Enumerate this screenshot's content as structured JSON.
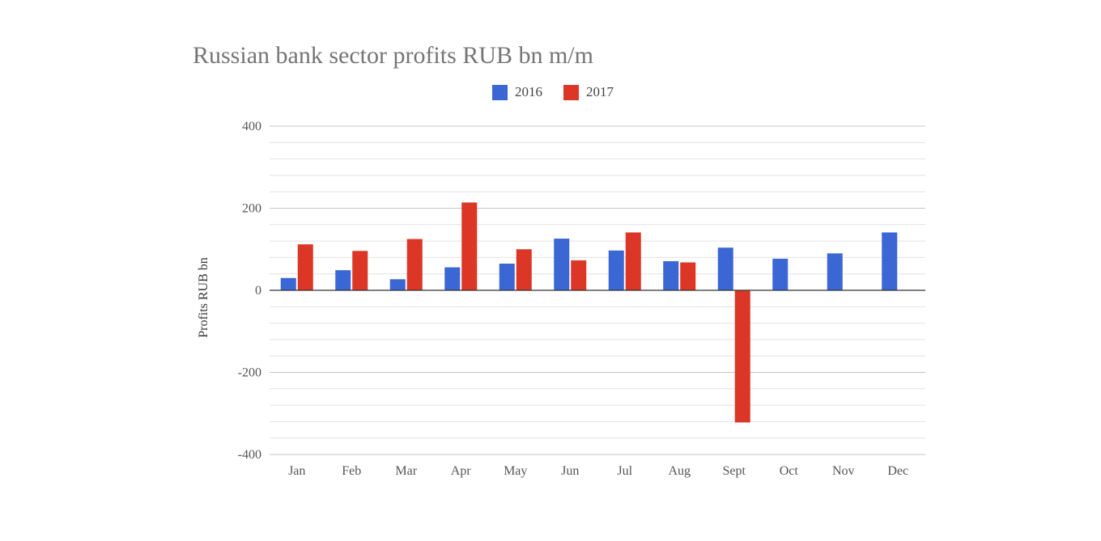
{
  "chart_data": {
    "type": "bar",
    "title": "Russian bank sector profits RUB bn m/m",
    "xlabel": "",
    "ylabel": "Profits RUB bn",
    "categories": [
      "Jan",
      "Feb",
      "Mar",
      "Apr",
      "May",
      "Jun",
      "Jul",
      "Aug",
      "Sept",
      "Oct",
      "Nov",
      "Dec"
    ],
    "series": [
      {
        "name": "2016",
        "color": "#3b67d4",
        "values": [
          30,
          49,
          27,
          56,
          65,
          126,
          97,
          71,
          104,
          77,
          90,
          141
        ]
      },
      {
        "name": "2017",
        "color": "#dc3626",
        "values": [
          112,
          96,
          125,
          214,
          100,
          73,
          141,
          68,
          -322,
          null,
          null,
          null
        ]
      }
    ],
    "ylim": [
      -400,
      400
    ],
    "y_ticks": [
      400,
      200,
      0,
      -200,
      -400
    ],
    "minor_grid_step": 40,
    "grid": true,
    "legend_position": "top-center"
  }
}
